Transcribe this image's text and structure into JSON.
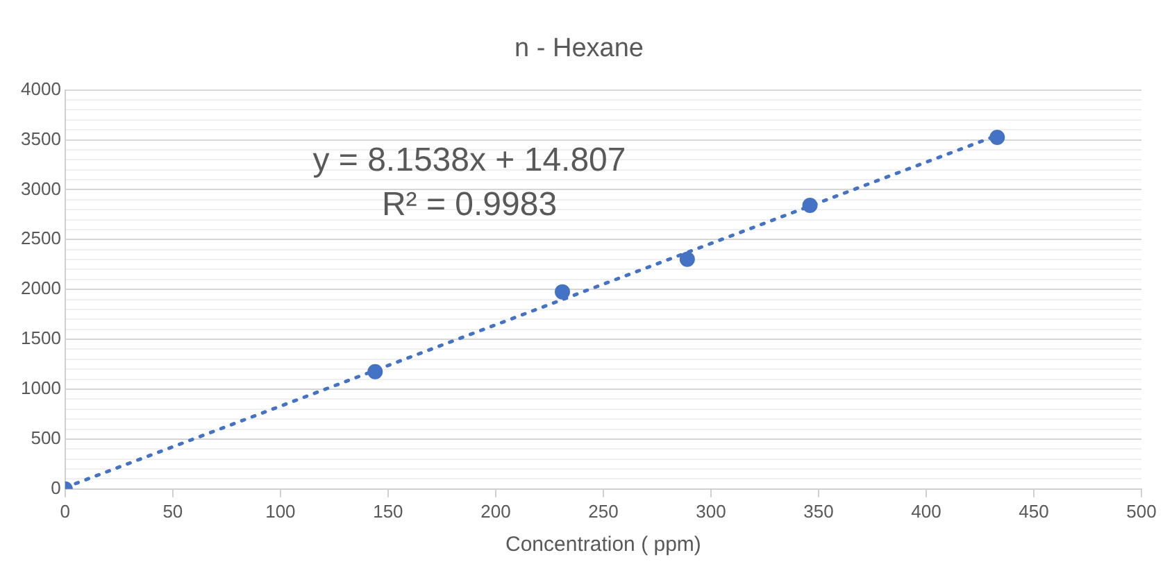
{
  "chart_data": {
    "type": "scatter",
    "title": "n - Hexane",
    "xlabel": "Concentration ( ppm)",
    "annotations": [
      "y = 8.1538x + 14.807",
      "R² = 0.9983"
    ],
    "marker": "circle",
    "grid": "y",
    "legend": false,
    "xlim": [
      0,
      500
    ],
    "xticks": [
      0,
      50,
      100,
      150,
      200,
      250,
      300,
      350,
      400,
      450,
      500
    ],
    "ylim": [
      0,
      4000
    ],
    "yticks": [
      0,
      {
        "value": 100,
        "label": null
      },
      {
        "value": 200,
        "label": null
      },
      {
        "value": 300,
        "label": null
      },
      {
        "value": 400,
        "label": null
      },
      500,
      {
        "value": 600,
        "label": null
      },
      {
        "value": 700,
        "label": null
      },
      {
        "value": 800,
        "label": null
      },
      {
        "value": 900,
        "label": null
      },
      1000,
      {
        "value": 1100,
        "label": null
      },
      {
        "value": 1200,
        "label": null
      },
      {
        "value": 1300,
        "label": null
      },
      {
        "value": 1400,
        "label": null
      },
      1500,
      {
        "value": 1600,
        "label": null
      },
      {
        "value": 1700,
        "label": null
      },
      {
        "value": 1800,
        "label": null
      },
      {
        "value": 1900,
        "label": null
      },
      2000,
      {
        "value": 2100,
        "label": null
      },
      {
        "value": 2200,
        "label": null
      },
      {
        "value": 2300,
        "label": null
      },
      {
        "value": 2400,
        "label": null
      },
      2500,
      {
        "value": 2600,
        "label": null
      },
      {
        "value": 2700,
        "label": null
      },
      {
        "value": 2800,
        "label": null
      },
      {
        "value": 2900,
        "label": null
      },
      3000,
      {
        "value": 3100,
        "label": null
      },
      {
        "value": 3200,
        "label": null
      },
      {
        "value": 3300,
        "label": null
      },
      {
        "value": 3400,
        "label": null
      },
      3500,
      {
        "value": 3600,
        "label": null
      },
      {
        "value": 3700,
        "label": null
      },
      {
        "value": 3800,
        "label": null
      },
      {
        "value": 3900,
        "label": null
      },
      4000
    ],
    "series": [
      {
        "color": "#4472c4",
        "x": [
          0,
          144,
          231,
          289,
          346,
          433
        ],
        "values": [
          0,
          1175,
          1976,
          2303,
          2843,
          3524
        ]
      },
      {
        "type": "line",
        "color": "#4472c4",
        "line_style": "dotted",
        "marker": "none",
        "x": [
          0,
          433
        ],
        "values": [
          15,
          3545
        ]
      }
    ]
  }
}
